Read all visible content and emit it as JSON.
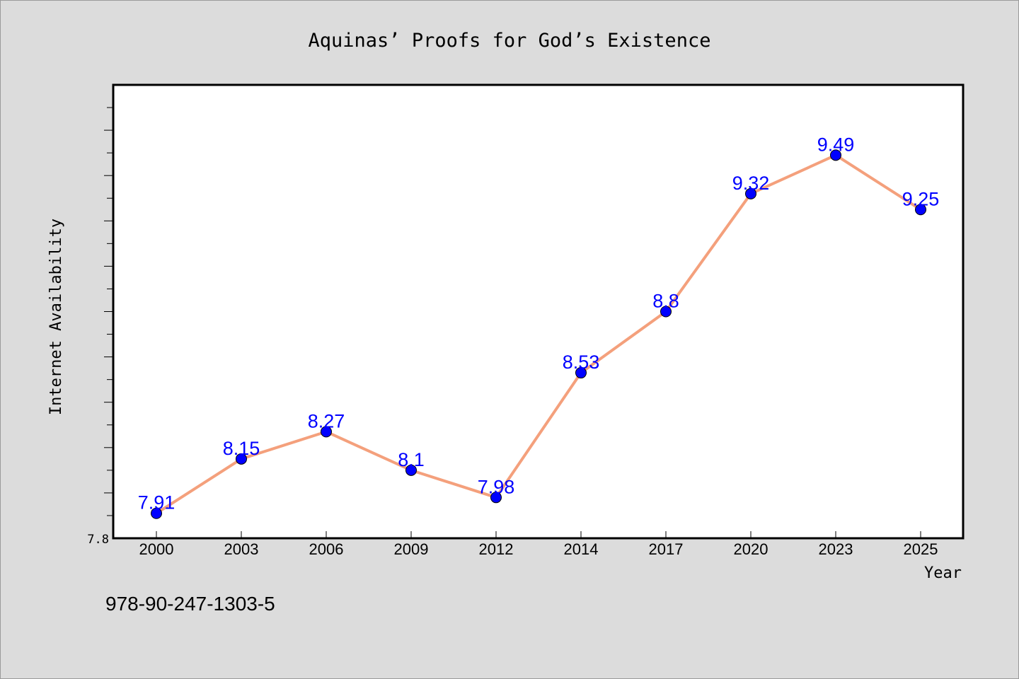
{
  "chart_data": {
    "type": "line",
    "title": "Aquinas’ Proofs for God’s Existence",
    "xlabel": "Year",
    "ylabel": "Internet Availability",
    "categories": [
      "2000",
      "2003",
      "2006",
      "2009",
      "2012",
      "2014",
      "2017",
      "2020",
      "2023",
      "2025"
    ],
    "series": [
      {
        "values": [
          7.91,
          8.15,
          8.27,
          8.1,
          7.98,
          8.53,
          8.8,
          9.32,
          9.49,
          9.25
        ]
      }
    ],
    "ylim": [
      7.8,
      9.8
    ],
    "yticks_labeled": [
      "7.8"
    ],
    "grid": false,
    "line_color": "#f4a07c",
    "marker_color": "#0000ff",
    "label_color": "#0000ff"
  },
  "footer": {
    "isbn": "978-90-247-1303-5"
  }
}
